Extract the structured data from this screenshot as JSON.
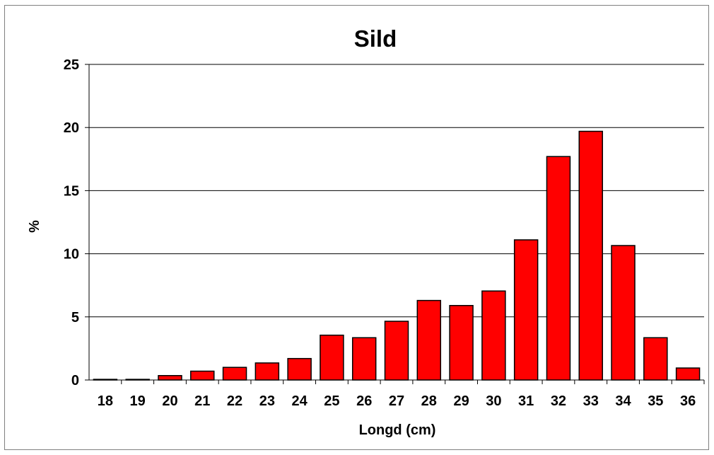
{
  "chart_data": {
    "type": "bar",
    "title": "Sild",
    "xlabel": "Longd (cm)",
    "ylabel": "%",
    "categories": [
      "18",
      "19",
      "20",
      "21",
      "22",
      "23",
      "24",
      "25",
      "26",
      "27",
      "28",
      "29",
      "30",
      "31",
      "32",
      "33",
      "34",
      "35",
      "36"
    ],
    "values": [
      0.05,
      0.05,
      0.35,
      0.7,
      1.0,
      1.35,
      1.7,
      3.55,
      3.35,
      4.65,
      6.3,
      5.9,
      7.05,
      11.1,
      17.7,
      19.7,
      10.65,
      3.35,
      0.95
    ],
    "ylim": [
      0,
      25
    ],
    "yticks": [
      "0",
      "5",
      "10",
      "15",
      "20",
      "25"
    ],
    "grid": true,
    "colors": {
      "bar": "#ff0000",
      "bar_edge": "#000000"
    }
  }
}
